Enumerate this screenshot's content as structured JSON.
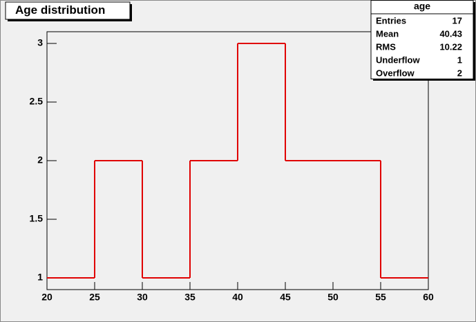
{
  "chart_data": {
    "type": "histogram",
    "title": "Age distribution",
    "bins": [
      20,
      25,
      30,
      35,
      40,
      45,
      50,
      55,
      60
    ],
    "values": [
      1,
      2,
      1,
      2,
      3,
      2,
      2,
      1
    ],
    "color": "#e00000",
    "xlim": [
      20,
      60
    ],
    "xticks": [
      20,
      25,
      30,
      35,
      40,
      45,
      50,
      55,
      60
    ],
    "ylim": [
      0.9,
      3.1
    ],
    "yticks": [
      1,
      1.5,
      2,
      2.5,
      3
    ],
    "stats": {
      "title": "age",
      "rows": [
        {
          "label": "Entries",
          "value": 17
        },
        {
          "label": "Mean",
          "value": 40.43
        },
        {
          "label": "RMS",
          "value": 10.22
        },
        {
          "label": "Underflow",
          "value": 1
        },
        {
          "label": "Overflow",
          "value": 2
        }
      ]
    }
  }
}
